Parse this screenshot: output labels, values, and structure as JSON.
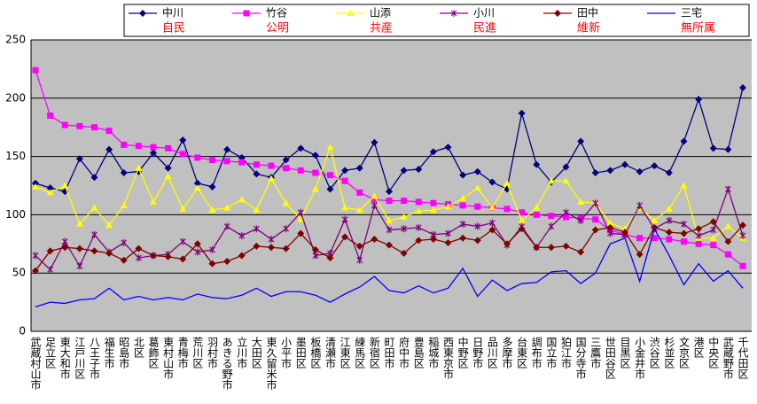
{
  "chart_data": {
    "type": "line",
    "categories": [
      "武蔵村山市",
      "足立区",
      "東大和市",
      "江戸川区",
      "八王子市",
      "福生市",
      "昭島市",
      "北区",
      "葛飾区",
      "東村山市",
      "青梅市",
      "荒川区",
      "羽村市",
      "あきる野市",
      "立川市",
      "大田区",
      "東久留米市",
      "小平市",
      "墨田区",
      "板橋区",
      "清瀬市",
      "江東区",
      "練馬区",
      "新宿区",
      "町田市",
      "府中市",
      "豊島区",
      "稲城市",
      "西東京市",
      "中野区",
      "日野市",
      "品川区",
      "多摩市",
      "台東区",
      "調布市",
      "国立市",
      "狛江市",
      "国分寺市",
      "三鷹市",
      "世田谷区",
      "目黒区",
      "小金井市",
      "渋谷区",
      "杉並区",
      "文京区",
      "港区",
      "中央区",
      "武蔵野市",
      "千代田区"
    ],
    "series": [
      {
        "name": "中川",
        "party": "自民",
        "color": "#000080",
        "marker": "diamond",
        "values": [
          127,
          123,
          120,
          148,
          132,
          156,
          136,
          137,
          153,
          140,
          164,
          127,
          124,
          156,
          149,
          135,
          132,
          147,
          157,
          151,
          122,
          138,
          140,
          162,
          120,
          138,
          139,
          154,
          158,
          134,
          137,
          128,
          122,
          187,
          143,
          128,
          141,
          163,
          136,
          138,
          143,
          137,
          142,
          136,
          163,
          199,
          157,
          156,
          209
        ]
      },
      {
        "name": "竹谷",
        "party": "公明",
        "color": "#ff00ff",
        "marker": "square",
        "values": [
          224,
          185,
          177,
          176,
          175,
          172,
          160,
          159,
          158,
          157,
          152,
          149,
          147,
          146,
          145,
          143,
          142,
          140,
          138,
          136,
          134,
          129,
          119,
          113,
          112,
          112,
          111,
          110,
          109,
          108,
          107,
          106,
          105,
          102,
          100,
          99,
          98,
          97,
          96,
          87,
          83,
          80,
          80,
          79,
          77,
          75,
          74,
          66,
          56
        ]
      },
      {
        "name": "山添",
        "party": "共産",
        "color": "#ffff00",
        "marker": "triangle",
        "values": [
          124,
          119,
          125,
          92,
          106,
          91,
          108,
          140,
          111,
          133,
          105,
          123,
          104,
          106,
          113,
          104,
          131,
          110,
          96,
          122,
          158,
          106,
          104,
          116,
          95,
          98,
          103,
          104,
          107,
          114,
          123,
          106,
          127,
          95,
          106,
          129,
          129,
          111,
          110,
          93,
          88,
          106,
          95,
          105,
          125,
          80,
          80,
          90,
          80
        ]
      },
      {
        "name": "小川",
        "party": "民進",
        "color": "#800080",
        "marker": "x",
        "values": [
          65,
          53,
          77,
          56,
          83,
          68,
          76,
          63,
          65,
          66,
          77,
          68,
          70,
          90,
          82,
          88,
          79,
          88,
          102,
          65,
          67,
          96,
          61,
          108,
          87,
          88,
          89,
          83,
          84,
          92,
          90,
          93,
          74,
          90,
          72,
          90,
          102,
          95,
          110,
          84,
          83,
          108,
          88,
          95,
          92,
          82,
          87,
          122,
          82
        ]
      },
      {
        "name": "田中",
        "party": "維新",
        "color": "#800000",
        "marker": "diamond",
        "values": [
          52,
          69,
          72,
          71,
          69,
          67,
          61,
          71,
          65,
          64,
          62,
          75,
          58,
          60,
          65,
          73,
          72,
          71,
          84,
          70,
          63,
          81,
          73,
          79,
          74,
          67,
          78,
          79,
          76,
          80,
          78,
          87,
          75,
          88,
          72,
          72,
          73,
          68,
          87,
          89,
          85,
          66,
          89,
          85,
          84,
          88,
          94,
          77,
          91
        ]
      },
      {
        "name": "三宅",
        "party": "無所属",
        "color": "#0000ff",
        "marker": "none",
        "values": [
          21,
          25,
          24,
          27,
          28,
          37,
          27,
          30,
          27,
          29,
          27,
          32,
          29,
          28,
          31,
          37,
          30,
          34,
          34,
          31,
          25,
          32,
          38,
          47,
          35,
          33,
          39,
          33,
          37,
          54,
          30,
          44,
          35,
          41,
          42,
          51,
          52,
          41,
          50,
          75,
          80,
          43,
          88,
          65,
          40,
          58,
          43,
          52,
          37
        ]
      }
    ],
    "ylim": [
      0,
      250
    ],
    "yticks": [
      0,
      50,
      100,
      150,
      200,
      250
    ],
    "grid": true,
    "legend": "top"
  }
}
